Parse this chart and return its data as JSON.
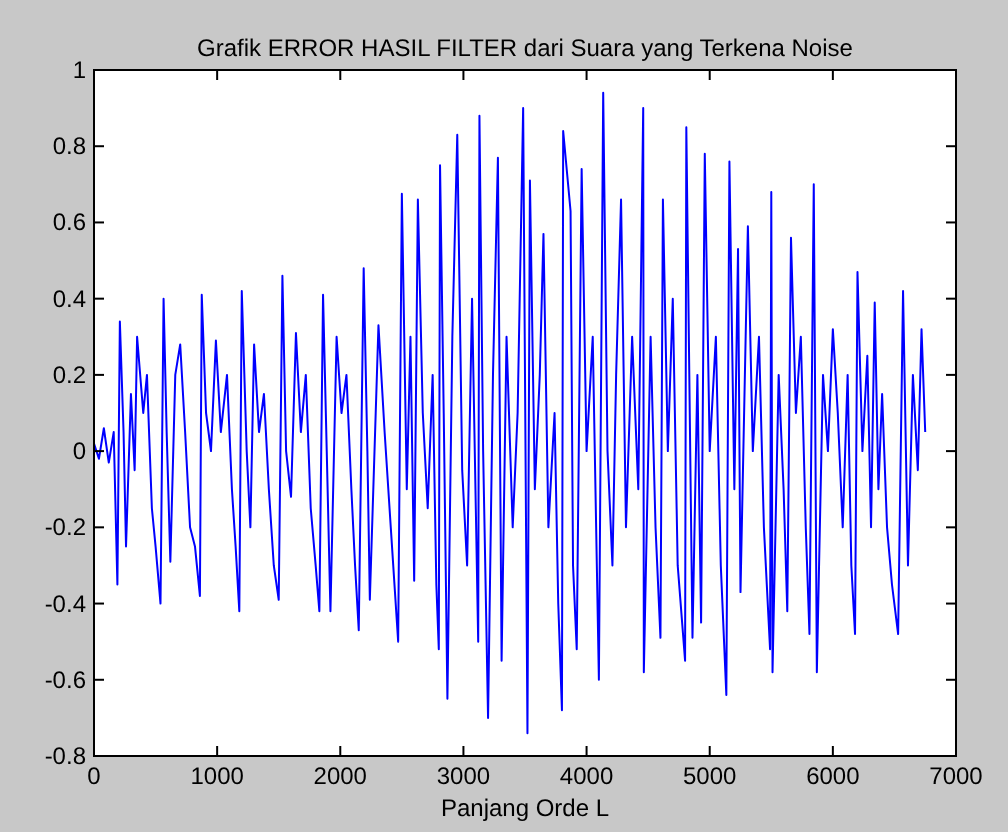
{
  "chart_data": {
    "type": "line",
    "title": "Grafik ERROR HASIL FILTER dari Suara yang Terkena Noise",
    "xlabel": "Panjang Orde L",
    "xlim": [
      0,
      7000
    ],
    "xticks": [
      0,
      1000,
      2000,
      3000,
      4000,
      5000,
      6000,
      7000
    ],
    "ylim": [
      -0.8,
      1
    ],
    "yticks": [
      -0.8,
      -0.6,
      -0.4,
      -0.2,
      0,
      0.2,
      0.4,
      0.6,
      0.8,
      1
    ],
    "grid": false,
    "marker": "none",
    "line_style": "solid",
    "series": [
      {
        "color": "#0000ff",
        "x": [
          0,
          40,
          80,
          120,
          160,
          190,
          210,
          240,
          260,
          300,
          330,
          350,
          400,
          430,
          470,
          500,
          540,
          565,
          590,
          620,
          660,
          700,
          740,
          780,
          820,
          860,
          875,
          910,
          950,
          990,
          1030,
          1080,
          1120,
          1150,
          1180,
          1200,
          1240,
          1270,
          1300,
          1340,
          1380,
          1420,
          1460,
          1500,
          1530,
          1560,
          1600,
          1640,
          1680,
          1720,
          1760,
          1800,
          1830,
          1860,
          1890,
          1920,
          1970,
          2010,
          2050,
          2090,
          2120,
          2150,
          2190,
          2220,
          2240,
          2310,
          2360,
          2410,
          2470,
          2500,
          2540,
          2570,
          2600,
          2630,
          2670,
          2710,
          2750,
          2780,
          2800,
          2810,
          2840,
          2870,
          2910,
          2950,
          2990,
          3030,
          3070,
          3120,
          3130,
          3160,
          3200,
          3240,
          3280,
          3310,
          3350,
          3400,
          3440,
          3485,
          3520,
          3540,
          3580,
          3620,
          3650,
          3690,
          3740,
          3770,
          3800,
          3810,
          3870,
          3890,
          3920,
          3960,
          4000,
          4050,
          4100,
          4135,
          4170,
          4210,
          4240,
          4280,
          4320,
          4370,
          4420,
          4460,
          4465,
          4520,
          4560,
          4600,
          4620,
          4660,
          4700,
          4740,
          4800,
          4810,
          4860,
          4900,
          4930,
          4960,
          5000,
          5050,
          5090,
          5135,
          5160,
          5200,
          5230,
          5250,
          5310,
          5350,
          5400,
          5440,
          5490,
          5500,
          5510,
          5560,
          5600,
          5630,
          5660,
          5700,
          5740,
          5780,
          5810,
          5845,
          5870,
          5920,
          5960,
          6000,
          6040,
          6080,
          6120,
          6150,
          6180,
          6200,
          6240,
          6280,
          6310,
          6340,
          6370,
          6400,
          6440,
          6480,
          6530,
          6570,
          6610,
          6650,
          6690,
          6720,
          6750
        ],
        "values": [
          0.02,
          -0.02,
          0.06,
          -0.03,
          0.05,
          -0.35,
          0.34,
          0.05,
          -0.25,
          0.15,
          -0.05,
          0.3,
          0.1,
          0.2,
          -0.15,
          -0.25,
          -0.4,
          0.4,
          0.05,
          -0.29,
          0.2,
          0.28,
          0.05,
          -0.2,
          -0.25,
          -0.38,
          0.41,
          0.1,
          0.0,
          0.29,
          0.05,
          0.2,
          -0.1,
          -0.25,
          -0.42,
          0.42,
          0.0,
          -0.2,
          0.28,
          0.05,
          0.15,
          -0.1,
          -0.3,
          -0.39,
          0.46,
          0.0,
          -0.12,
          0.31,
          0.05,
          0.2,
          -0.15,
          -0.3,
          -0.42,
          0.41,
          0.0,
          -0.42,
          0.3,
          0.1,
          0.2,
          -0.1,
          -0.3,
          -0.47,
          0.48,
          0.0,
          -0.39,
          0.33,
          0.05,
          -0.2,
          -0.5,
          0.675,
          -0.1,
          0.3,
          -0.34,
          0.66,
          0.1,
          -0.15,
          0.2,
          -0.35,
          -0.52,
          0.75,
          0.1,
          -0.65,
          0.3,
          0.83,
          -0.05,
          -0.3,
          0.4,
          -0.5,
          0.88,
          0.0,
          -0.7,
          0.2,
          0.77,
          -0.55,
          0.3,
          -0.2,
          0.1,
          0.9,
          -0.74,
          0.71,
          -0.1,
          0.2,
          0.57,
          -0.2,
          0.1,
          -0.4,
          -0.68,
          0.84,
          0.63,
          -0.3,
          -0.52,
          0.74,
          0.0,
          0.3,
          -0.6,
          0.94,
          0.0,
          -0.3,
          0.2,
          0.66,
          -0.2,
          0.3,
          -0.1,
          0.9,
          -0.58,
          0.3,
          -0.2,
          -0.49,
          0.66,
          0.0,
          0.4,
          -0.3,
          -0.55,
          0.85,
          -0.49,
          0.2,
          -0.45,
          0.78,
          0.0,
          0.3,
          -0.3,
          -0.64,
          0.76,
          -0.1,
          0.53,
          -0.37,
          0.59,
          0.0,
          0.3,
          -0.2,
          -0.52,
          0.68,
          -0.58,
          0.2,
          -0.1,
          -0.42,
          0.56,
          0.1,
          0.3,
          -0.2,
          -0.48,
          0.7,
          -0.58,
          0.2,
          0.0,
          0.32,
          0.1,
          -0.2,
          0.2,
          -0.3,
          -0.48,
          0.47,
          0.0,
          0.25,
          -0.2,
          0.39,
          -0.1,
          0.15,
          -0.2,
          -0.35,
          -0.48,
          0.42,
          -0.3,
          0.2,
          -0.05,
          0.32,
          0.05
        ]
      }
    ]
  }
}
